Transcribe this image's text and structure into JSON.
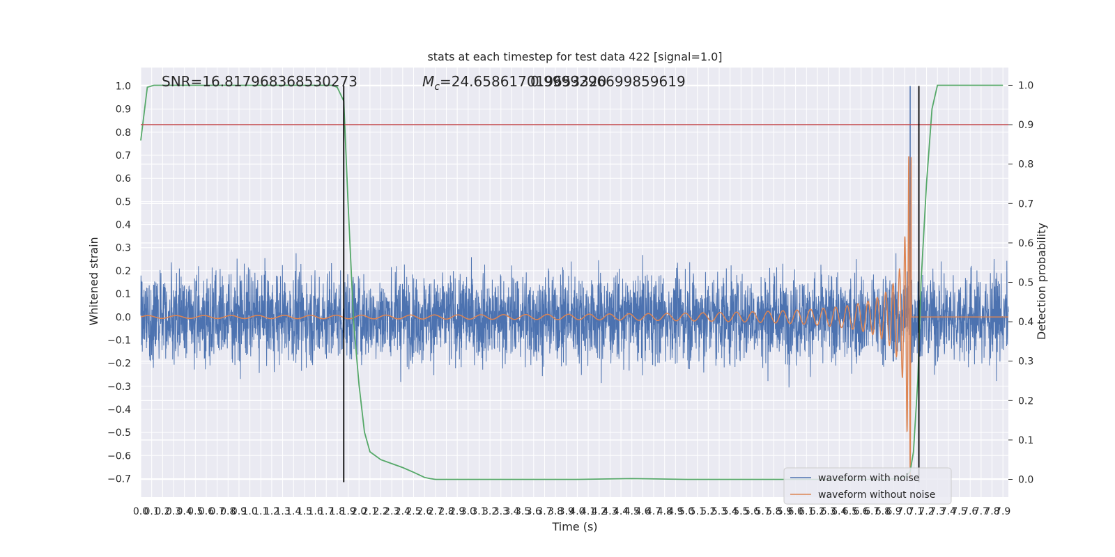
{
  "chart_data": {
    "type": "line",
    "title": "stats at each timestep for test data 422 [signal=1.0]",
    "xlabel": "Time (s)",
    "ylabel": "Whitened strain",
    "ylabel_right": "Detection probability",
    "annotations": {
      "snr": "SNR=16.817968368530273",
      "mc_symbol": "M",
      "mc_subscript": "c",
      "mc_value": "=24.658617019653320",
      "overlap_text": "0.9999296699859619"
    },
    "xlim": [
      0.0,
      7.95
    ],
    "ylim_left": [
      -0.78,
      1.08
    ],
    "ylim_right": [
      -0.045,
      1.045
    ],
    "x_ticks": [
      "0.0",
      "0.1",
      "0.2",
      "0.3",
      "0.4",
      "0.5",
      "0.6",
      "0.7",
      "0.8",
      "0.9",
      "1.0",
      "1.1",
      "1.2",
      "1.3",
      "1.4",
      "1.5",
      "1.6",
      "1.7",
      "1.8",
      "1.9",
      "2.0",
      "2.1",
      "2.2",
      "2.3",
      "2.4",
      "2.5",
      "2.6",
      "2.7",
      "2.8",
      "2.9",
      "3.0",
      "3.1",
      "3.2",
      "3.3",
      "3.4",
      "3.5",
      "3.6",
      "3.7",
      "3.8",
      "3.9",
      "4.0",
      "4.1",
      "4.2",
      "4.3",
      "4.4",
      "4.5",
      "4.6",
      "4.7",
      "4.8",
      "4.9",
      "5.0",
      "5.1",
      "5.2",
      "5.3",
      "5.4",
      "5.5",
      "5.6",
      "5.7",
      "5.8",
      "5.9",
      "6.0",
      "6.1",
      "6.2",
      "6.3",
      "6.4",
      "6.5",
      "6.6",
      "6.7",
      "6.8",
      "6.9",
      "7.0",
      "7.1",
      "7.2",
      "7.3",
      "7.4",
      "7.5",
      "7.6",
      "7.7",
      "7.8",
      "7.9"
    ],
    "y_ticks_left": [
      "1.0",
      "0.9",
      "0.8",
      "0.7",
      "0.6",
      "0.5",
      "0.4",
      "0.3",
      "0.2",
      "0.1",
      "0.0",
      "−0.1",
      "−0.2",
      "−0.3",
      "−0.4",
      "−0.5",
      "−0.6",
      "−0.7"
    ],
    "y_ticks_right": [
      "1.0",
      "0.9",
      "0.8",
      "0.7",
      "0.6",
      "0.5",
      "0.4",
      "0.3",
      "0.2",
      "0.1",
      "0.0"
    ],
    "threshold": {
      "axis": "right",
      "value": 0.9,
      "color": "#c44e52"
    },
    "vertical_lines": [
      1.86,
      7.13
    ],
    "series": [
      {
        "name": "waveform with noise",
        "color": "#4c72b0",
        "axis": "left",
        "kind": "noise",
        "envelope": 0.42,
        "peak": {
          "x": 7.05,
          "y": 1.0
        }
      },
      {
        "name": "waveform without noise",
        "color": "#dd8452",
        "axis": "left",
        "kind": "chirp",
        "merger_x": 7.06,
        "amplitude_start": 0.006,
        "amplitude_peak": 0.7
      },
      {
        "color": "#55a868",
        "axis": "right",
        "kind": "probability",
        "x": [
          0.0,
          0.06,
          0.12,
          0.2,
          0.4,
          0.8,
          1.2,
          1.6,
          1.75,
          1.8,
          1.86,
          1.9,
          1.95,
          2.0,
          2.05,
          2.1,
          2.2,
          2.3,
          2.4,
          2.5,
          2.6,
          2.65,
          2.7,
          3.0,
          3.5,
          4.0,
          4.5,
          5.0,
          5.5,
          6.0,
          6.5,
          6.85,
          6.95,
          7.0,
          7.05,
          7.08,
          7.12,
          7.15,
          7.2,
          7.25,
          7.3,
          7.5,
          7.9
        ],
        "y": [
          0.86,
          0.995,
          1.0,
          1.0,
          1.0,
          1.0,
          1.0,
          1.0,
          1.0,
          0.995,
          0.96,
          0.7,
          0.4,
          0.24,
          0.12,
          0.07,
          0.05,
          0.04,
          0.03,
          0.018,
          0.005,
          0.002,
          0.0,
          0.0,
          0.0,
          0.0,
          0.002,
          0.0,
          0.0,
          0.0,
          0.0,
          0.0,
          0.003,
          0.005,
          0.02,
          0.07,
          0.25,
          0.5,
          0.75,
          0.94,
          1.0,
          1.0,
          1.0
        ]
      }
    ],
    "legend": {
      "placement": "lower-right",
      "entries": [
        "waveform with noise",
        "waveform without noise"
      ]
    },
    "grid": true
  }
}
